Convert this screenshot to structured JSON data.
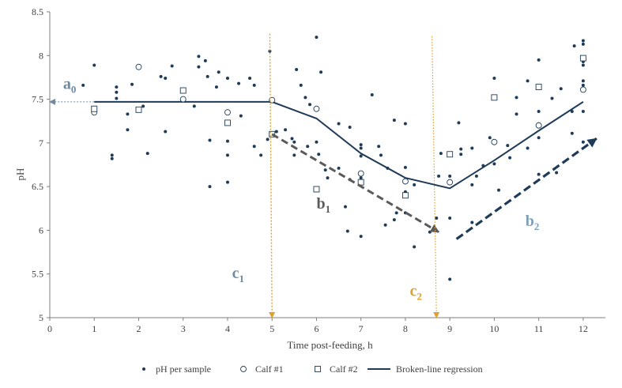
{
  "chart_data": {
    "type": "scatter",
    "xlabel": "Time post-feeding, h",
    "ylabel": "pH",
    "xlim": [
      0,
      12.5
    ],
    "ylim": [
      5,
      8.5
    ],
    "x_ticks": [
      0,
      1,
      2,
      3,
      4,
      5,
      6,
      7,
      8,
      9,
      10,
      11,
      12
    ],
    "y_ticks": [
      5,
      5.5,
      6,
      6.5,
      7,
      7.5,
      8,
      8.5
    ],
    "y_tick_labels": [
      "5",
      "5.5",
      "6",
      "6.5",
      "7",
      "7.5",
      "8",
      "8.5"
    ],
    "grid": false,
    "legend_position": "bottom",
    "legend": [
      {
        "label": "pH per sample",
        "marker": "dot"
      },
      {
        "label": "Calf #1",
        "marker": "circle"
      },
      {
        "label": "Calf #2",
        "marker": "square"
      },
      {
        "label": "Broken-line regression",
        "marker": "line"
      }
    ],
    "colors": {
      "points": "#1f3b57",
      "regression": "#1f3b57",
      "a0": "#6f8aa3",
      "b1": "#5a5a5a",
      "b2": "#1f3b57",
      "c": "#e0a030",
      "c1_label": "#6f8aa3",
      "c2_label": "#e0a030",
      "b2_label": "#7ea0b8",
      "axis": "#7f7f7f",
      "text": "#404040"
    },
    "series": [
      {
        "name": "pH per sample",
        "marker": "dot",
        "points": [
          [
            0.75,
            7.66
          ],
          [
            1,
            7.89
          ],
          [
            1.4,
            6.86
          ],
          [
            1.4,
            6.82
          ],
          [
            1.5,
            7.64
          ],
          [
            1.5,
            7.58
          ],
          [
            1.5,
            7.51
          ],
          [
            1.75,
            7.15
          ],
          [
            1.75,
            7.33
          ],
          [
            1.85,
            7.67
          ],
          [
            2.1,
            7.42
          ],
          [
            2.2,
            6.88
          ],
          [
            2.5,
            7.76
          ],
          [
            2.6,
            7.74
          ],
          [
            2.6,
            7.13
          ],
          [
            2.75,
            7.88
          ],
          [
            3.25,
            7.42
          ],
          [
            3.35,
            7.99
          ],
          [
            3.35,
            7.87
          ],
          [
            3.5,
            7.94
          ],
          [
            3.55,
            7.76
          ],
          [
            3.6,
            7.03
          ],
          [
            3.6,
            6.5
          ],
          [
            3.75,
            7.64
          ],
          [
            3.8,
            7.81
          ],
          [
            4,
            7.74
          ],
          [
            4,
            7.02
          ],
          [
            4,
            6.86
          ],
          [
            4,
            6.55
          ],
          [
            4.25,
            7.68
          ],
          [
            4.3,
            7.31
          ],
          [
            4.5,
            7.74
          ],
          [
            4.6,
            7.66
          ],
          [
            4.6,
            6.96
          ],
          [
            4.75,
            6.86
          ],
          [
            4.9,
            7.04
          ],
          [
            4.95,
            8.05
          ],
          [
            5.1,
            7.13
          ],
          [
            5.3,
            7.15
          ],
          [
            5.45,
            7.05
          ],
          [
            5.5,
            6.86
          ],
          [
            5.5,
            7.01
          ],
          [
            5.55,
            7.84
          ],
          [
            5.65,
            7.66
          ],
          [
            5.75,
            7.52
          ],
          [
            5.8,
            6.96
          ],
          [
            5.85,
            7.44
          ],
          [
            6,
            8.21
          ],
          [
            6,
            7.01
          ],
          [
            6.05,
            6.87
          ],
          [
            6.1,
            7.81
          ],
          [
            6.2,
            6.69
          ],
          [
            6.25,
            6.6
          ],
          [
            6.5,
            6.71
          ],
          [
            6.5,
            7.22
          ],
          [
            6.65,
            6.27
          ],
          [
            6.7,
            5.99
          ],
          [
            6.75,
            6.58
          ],
          [
            6.75,
            7.18
          ],
          [
            7,
            6.98
          ],
          [
            7,
            6.94
          ],
          [
            7,
            6.85
          ],
          [
            7,
            6.6
          ],
          [
            7,
            5.93
          ],
          [
            7.25,
            7.55
          ],
          [
            7.4,
            6.96
          ],
          [
            7.45,
            6.86
          ],
          [
            7.55,
            6.06
          ],
          [
            7.6,
            6.71
          ],
          [
            7.75,
            6.12
          ],
          [
            7.75,
            7.26
          ],
          [
            7.8,
            6.2
          ],
          [
            8,
            7.22
          ],
          [
            8,
            6.72
          ],
          [
            8,
            6.2
          ],
          [
            8,
            6.44
          ],
          [
            8.2,
            5.81
          ],
          [
            8.2,
            6.52
          ],
          [
            8.55,
            5.98
          ],
          [
            8.7,
            6.14
          ],
          [
            8.75,
            6.62
          ],
          [
            8.8,
            6.88
          ],
          [
            9,
            6.14
          ],
          [
            9,
            5.44
          ],
          [
            9,
            6.62
          ],
          [
            9.2,
            7.23
          ],
          [
            9.25,
            6.93
          ],
          [
            9.25,
            6.87
          ],
          [
            9.5,
            6.09
          ],
          [
            9.5,
            6.52
          ],
          [
            9.5,
            6.94
          ],
          [
            9.6,
            6.62
          ],
          [
            9.75,
            6.74
          ],
          [
            9.9,
            7.06
          ],
          [
            10,
            6.76
          ],
          [
            10,
            7.74
          ],
          [
            10,
            7.02
          ],
          [
            10.1,
            6.46
          ],
          [
            10.3,
            6.97
          ],
          [
            10.35,
            6.83
          ],
          [
            10.5,
            7.33
          ],
          [
            10.5,
            7.52
          ],
          [
            10.75,
            7.71
          ],
          [
            10.75,
            6.94
          ],
          [
            11,
            7.36
          ],
          [
            11,
            7.06
          ],
          [
            11,
            6.64
          ],
          [
            11,
            7.95
          ],
          [
            11.3,
            7.51
          ],
          [
            11.4,
            6.66
          ],
          [
            11.5,
            7.62
          ],
          [
            11.75,
            7.36
          ],
          [
            11.75,
            7.11
          ],
          [
            11.8,
            8.11
          ],
          [
            12,
            8.17
          ],
          [
            12,
            8.13
          ],
          [
            12,
            7.93
          ],
          [
            12,
            7.89
          ],
          [
            12,
            7.71
          ],
          [
            12,
            7.66
          ],
          [
            12,
            7.36
          ],
          [
            12,
            7.01
          ]
        ]
      },
      {
        "name": "Calf #1",
        "marker": "circle",
        "points": [
          [
            1,
            7.35
          ],
          [
            2,
            7.87
          ],
          [
            3,
            7.5
          ],
          [
            4,
            7.35
          ],
          [
            5,
            7.49
          ],
          [
            6,
            7.39
          ],
          [
            7,
            6.65
          ],
          [
            8,
            6.56
          ],
          [
            9,
            6.55
          ],
          [
            10,
            7.01
          ],
          [
            11,
            7.2
          ],
          [
            12,
            7.61
          ]
        ]
      },
      {
        "name": "Calf #2",
        "marker": "square",
        "points": [
          [
            1,
            7.39
          ],
          [
            2,
            7.38
          ],
          [
            3,
            7.6
          ],
          [
            4,
            7.23
          ],
          [
            5,
            7.1
          ],
          [
            6,
            6.47
          ],
          [
            7,
            6.55
          ],
          [
            8,
            6.4
          ],
          [
            9,
            6.87
          ],
          [
            10,
            7.52
          ],
          [
            11,
            7.64
          ],
          [
            12,
            7.97
          ]
        ]
      },
      {
        "name": "Broken-line regression",
        "marker": "line",
        "points": [
          [
            1,
            7.47
          ],
          [
            5,
            7.47
          ],
          [
            6,
            7.28
          ],
          [
            7,
            6.88
          ],
          [
            8,
            6.6
          ],
          [
            9,
            6.48
          ],
          [
            10,
            6.8
          ],
          [
            11,
            7.14
          ],
          [
            12,
            7.47
          ]
        ]
      }
    ],
    "annotations": [
      {
        "id": "a0",
        "main": "a",
        "sub": "0",
        "arrow": {
          "from": [
            1,
            7.47
          ],
          "to": [
            0,
            7.47
          ],
          "style": "dotted"
        },
        "label_at": [
          0.3,
          7.62
        ]
      },
      {
        "id": "b1",
        "main": "b",
        "sub": "1",
        "arrow": {
          "from": [
            5,
            7.1
          ],
          "to": [
            8.75,
            5.98
          ],
          "style": "dashed"
        },
        "label_at": [
          6,
          6.25
        ]
      },
      {
        "id": "b2",
        "main": "b",
        "sub": "2",
        "arrow": {
          "from": [
            9.15,
            5.9
          ],
          "to": [
            12.3,
            7.05
          ],
          "style": "dashed"
        },
        "label_at": [
          10.7,
          6.05
        ]
      },
      {
        "id": "c1",
        "main": "c",
        "sub": "1",
        "arrow": {
          "from": [
            4.95,
            8.25
          ],
          "to": [
            5,
            5
          ],
          "style": "dotted"
        },
        "label_at": [
          4.1,
          5.45
        ]
      },
      {
        "id": "c2",
        "main": "c",
        "sub": "2",
        "arrow": {
          "from": [
            8.6,
            8.22
          ],
          "to": [
            8.7,
            5
          ],
          "style": "dotted"
        },
        "label_at": [
          8.1,
          5.25
        ]
      }
    ]
  }
}
